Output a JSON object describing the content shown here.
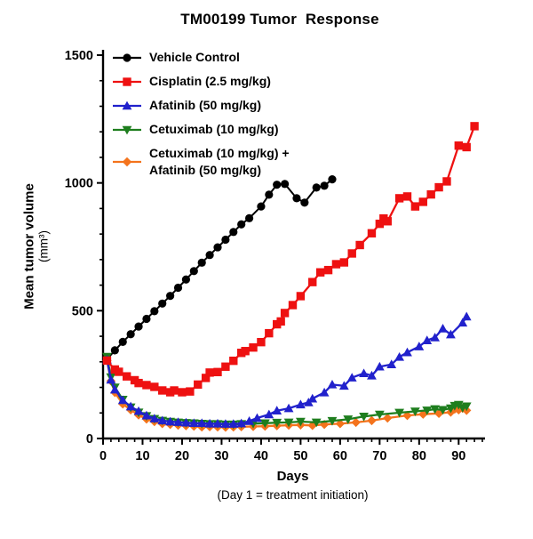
{
  "figure": {
    "background": "#ffffff"
  },
  "chart_data": {
    "type": "line",
    "title": "TM00199 Tumor  Response",
    "xlabel": "Days",
    "xlabel_note": "(Day 1 = treatment initiation)",
    "ylabel": "Mean tumor volume",
    "ylabel_unit": "(mm³)",
    "xlim": [
      0,
      96
    ],
    "ylim": [
      0,
      1500
    ],
    "x_major_ticks": [
      0,
      10,
      20,
      30,
      40,
      50,
      60,
      70,
      80,
      90
    ],
    "x_minor_step": 2,
    "y_major_ticks": [
      0,
      500,
      1000,
      1500
    ],
    "y_minor_step": 100,
    "grid": false,
    "legend_position": "top-left-inside",
    "axis_color": "#000000",
    "series": [
      {
        "name": "Vehicle Control",
        "color": "#000000",
        "marker": "circle",
        "data": [
          [
            1,
            310
          ],
          [
            3,
            345
          ],
          [
            5,
            378
          ],
          [
            7,
            408
          ],
          [
            9,
            438
          ],
          [
            11,
            468
          ],
          [
            13,
            498
          ],
          [
            15,
            528
          ],
          [
            17,
            558
          ],
          [
            19,
            590
          ],
          [
            21,
            622
          ],
          [
            23,
            655
          ],
          [
            25,
            688
          ],
          [
            27,
            718
          ],
          [
            29,
            748
          ],
          [
            31,
            778
          ],
          [
            33,
            808
          ],
          [
            35,
            838
          ],
          [
            37,
            862
          ],
          [
            40,
            908
          ],
          [
            42,
            954
          ],
          [
            44,
            993
          ],
          [
            46,
            996
          ],
          [
            49,
            940
          ],
          [
            51,
            923
          ],
          [
            54,
            982
          ],
          [
            56,
            989
          ],
          [
            58,
            1014
          ]
        ]
      },
      {
        "name": "Cisplatin (2.5 mg/kg)",
        "color": "#EE1111",
        "marker": "square",
        "data": [
          [
            1,
            305
          ],
          [
            3,
            270
          ],
          [
            4,
            261
          ],
          [
            6,
            243
          ],
          [
            8,
            228
          ],
          [
            9,
            217
          ],
          [
            11,
            209
          ],
          [
            13,
            202
          ],
          [
            15,
            188
          ],
          [
            17,
            181
          ],
          [
            18,
            188
          ],
          [
            20,
            181
          ],
          [
            22,
            184
          ],
          [
            24,
            211
          ],
          [
            26,
            237
          ],
          [
            27,
            258
          ],
          [
            29,
            260
          ],
          [
            31,
            281
          ],
          [
            33,
            304
          ],
          [
            35,
            335
          ],
          [
            36,
            342
          ],
          [
            38,
            356
          ],
          [
            40,
            377
          ],
          [
            42,
            412
          ],
          [
            44,
            447
          ],
          [
            45,
            458
          ],
          [
            46,
            491
          ],
          [
            48,
            522
          ],
          [
            50,
            557
          ],
          [
            53,
            612
          ],
          [
            55,
            650
          ],
          [
            57,
            659
          ],
          [
            59,
            682
          ],
          [
            61,
            689
          ],
          [
            63,
            724
          ],
          [
            65,
            757
          ],
          [
            68,
            803
          ],
          [
            70,
            840
          ],
          [
            71,
            861
          ],
          [
            72,
            850
          ],
          [
            75,
            940
          ],
          [
            77,
            947
          ],
          [
            79,
            908
          ],
          [
            81,
            926
          ],
          [
            83,
            955
          ],
          [
            85,
            983
          ],
          [
            87,
            1006
          ],
          [
            90,
            1146
          ],
          [
            92,
            1140
          ],
          [
            94,
            1222
          ]
        ]
      },
      {
        "name": "Afatinib (50 mg/kg)",
        "color": "#2121CC",
        "marker": "triangle-up",
        "data": [
          [
            1,
            308
          ],
          [
            2,
            230
          ],
          [
            3,
            191
          ],
          [
            5,
            150
          ],
          [
            7,
            125
          ],
          [
            9,
            107
          ],
          [
            11,
            90
          ],
          [
            13,
            78
          ],
          [
            15,
            70
          ],
          [
            17,
            66
          ],
          [
            19,
            64
          ],
          [
            21,
            62
          ],
          [
            23,
            60
          ],
          [
            25,
            60
          ],
          [
            27,
            58
          ],
          [
            29,
            58
          ],
          [
            31,
            57
          ],
          [
            33,
            57
          ],
          [
            35,
            59
          ],
          [
            37,
            68
          ],
          [
            39,
            80
          ],
          [
            42,
            94
          ],
          [
            44,
            109
          ],
          [
            47,
            118
          ],
          [
            50,
            133
          ],
          [
            52,
            141
          ],
          [
            53,
            156
          ],
          [
            56,
            180
          ],
          [
            58,
            211
          ],
          [
            61,
            206
          ],
          [
            63,
            238
          ],
          [
            66,
            255
          ],
          [
            68,
            246
          ],
          [
            70,
            281
          ],
          [
            73,
            290
          ],
          [
            75,
            319
          ],
          [
            77,
            337
          ],
          [
            80,
            360
          ],
          [
            82,
            384
          ],
          [
            84,
            395
          ],
          [
            86,
            430
          ],
          [
            88,
            407
          ],
          [
            91,
            453
          ],
          [
            92,
            477
          ]
        ]
      },
      {
        "name": "Cetuximab (10 mg/kg)",
        "color": "#1E7E1E",
        "marker": "triangle-down",
        "data": [
          [
            1,
            320
          ],
          [
            2,
            240
          ],
          [
            3,
            200
          ],
          [
            5,
            152
          ],
          [
            7,
            122
          ],
          [
            9,
            102
          ],
          [
            11,
            88
          ],
          [
            13,
            77
          ],
          [
            15,
            70
          ],
          [
            17,
            66
          ],
          [
            19,
            63
          ],
          [
            21,
            61
          ],
          [
            23,
            60
          ],
          [
            25,
            58
          ],
          [
            27,
            57
          ],
          [
            29,
            57
          ],
          [
            31,
            55
          ],
          [
            33,
            55
          ],
          [
            35,
            57
          ],
          [
            38,
            58
          ],
          [
            41,
            60
          ],
          [
            44,
            62
          ],
          [
            47,
            63
          ],
          [
            50,
            66
          ],
          [
            54,
            63
          ],
          [
            58,
            69
          ],
          [
            62,
            75
          ],
          [
            66,
            86
          ],
          [
            70,
            94
          ],
          [
            75,
            101
          ],
          [
            79,
            106
          ],
          [
            82,
            110
          ],
          [
            84,
            115
          ],
          [
            86,
            112
          ],
          [
            88,
            118
          ],
          [
            89,
            128
          ],
          [
            90,
            132
          ],
          [
            91,
            120
          ],
          [
            92,
            126
          ]
        ]
      },
      {
        "name": "Cetuximab (10 mg/kg) +\nAfatinib (50 mg/kg)",
        "color": "#F4731C",
        "marker": "diamond",
        "data": [
          [
            1,
            305
          ],
          [
            2,
            225
          ],
          [
            3,
            180
          ],
          [
            5,
            135
          ],
          [
            7,
            112
          ],
          [
            9,
            92
          ],
          [
            11,
            76
          ],
          [
            13,
            66
          ],
          [
            15,
            58
          ],
          [
            17,
            55
          ],
          [
            19,
            52
          ],
          [
            21,
            50
          ],
          [
            23,
            48
          ],
          [
            25,
            45
          ],
          [
            27,
            46
          ],
          [
            29,
            45
          ],
          [
            31,
            44
          ],
          [
            33,
            45
          ],
          [
            35,
            46
          ],
          [
            38,
            47
          ],
          [
            41,
            48
          ],
          [
            44,
            50
          ],
          [
            47,
            52
          ],
          [
            50,
            53
          ],
          [
            53,
            51
          ],
          [
            56,
            55
          ],
          [
            60,
            58
          ],
          [
            64,
            63
          ],
          [
            68,
            70
          ],
          [
            72,
            80
          ],
          [
            77,
            90
          ],
          [
            81,
            95
          ],
          [
            85,
            98
          ],
          [
            88,
            103
          ],
          [
            89,
            115
          ],
          [
            90,
            112
          ],
          [
            91,
            118
          ],
          [
            92,
            110
          ]
        ]
      }
    ]
  }
}
